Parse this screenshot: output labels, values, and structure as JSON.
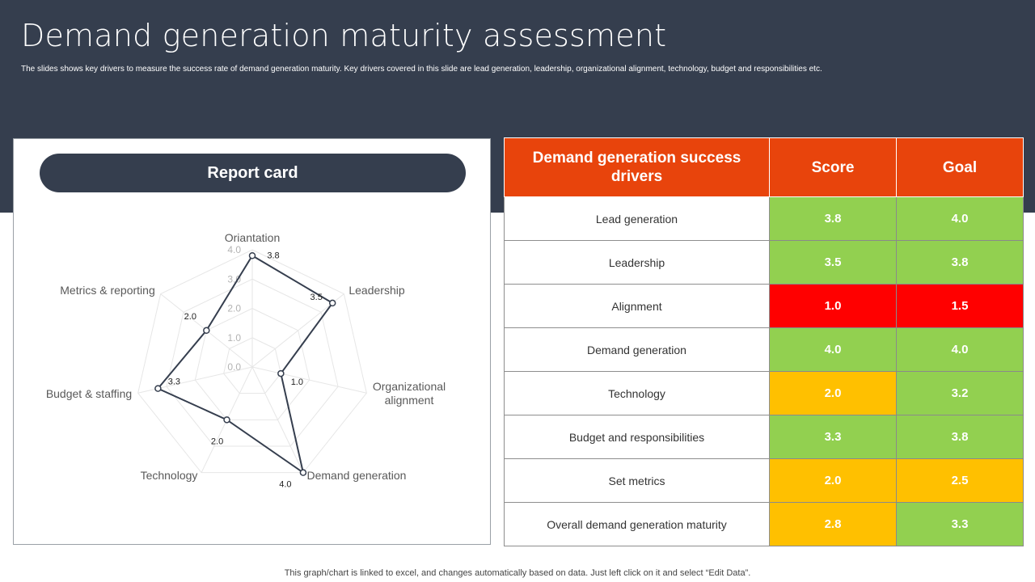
{
  "title": "Demand generation maturity assessment",
  "subtitle": "The slides shows key drivers to measure the success rate of demand generation maturity. Key drivers covered in this slide are lead generation, leadership, organizational alignment, technology, budget and responsibilities etc.",
  "report_card_label": "Report card",
  "table": {
    "headers": [
      "Demand generation success drivers",
      "Score",
      "Goal"
    ],
    "rows": [
      {
        "driver": "Lead generation",
        "score": "3.8",
        "goal": "4.0",
        "score_color": "#92d050",
        "goal_color": "#92d050"
      },
      {
        "driver": "Leadership",
        "score": "3.5",
        "goal": "3.8",
        "score_color": "#92d050",
        "goal_color": "#92d050"
      },
      {
        "driver": "Alignment",
        "score": "1.0",
        "goal": "1.5",
        "score_color": "#ff0000",
        "goal_color": "#ff0000"
      },
      {
        "driver": "Demand generation",
        "score": "4.0",
        "goal": "4.0",
        "score_color": "#92d050",
        "goal_color": "#92d050"
      },
      {
        "driver": "Technology",
        "score": "2.0",
        "goal": "3.2",
        "score_color": "#ffc000",
        "goal_color": "#92d050"
      },
      {
        "driver": "Budget and responsibilities",
        "score": "3.3",
        "goal": "3.8",
        "score_color": "#92d050",
        "goal_color": "#92d050"
      },
      {
        "driver": "Set metrics",
        "score": "2.0",
        "goal": "2.5",
        "score_color": "#ffc000",
        "goal_color": "#ffc000"
      },
      {
        "driver": "Overall demand generation maturity",
        "score": "2.8",
        "goal": "3.3",
        "score_color": "#ffc000",
        "goal_color": "#92d050"
      }
    ]
  },
  "chart_data": {
    "type": "radar",
    "axes": [
      "Oriantation",
      "Leadership",
      "Organizational alignment",
      "Demand generation",
      "Technology",
      "Budget & staffing",
      "Metrics & reporting"
    ],
    "values": [
      3.8,
      3.5,
      1.0,
      4.0,
      2.0,
      3.3,
      2.0
    ],
    "value_labels": [
      "3.8",
      "3.5",
      "1.0",
      "4.0",
      "2.0",
      "3.3",
      "2.0"
    ],
    "rlim": [
      0,
      4
    ],
    "ticks": [
      0,
      1,
      2,
      3,
      4
    ],
    "tick_labels": [
      "0.0",
      "1.0",
      "2.0",
      "3.0",
      "4.0"
    ],
    "series_color": "#353e4e"
  },
  "footer": "This graph/chart is linked to excel, and changes automatically based on data. Just left click on it and select “Edit Data”."
}
